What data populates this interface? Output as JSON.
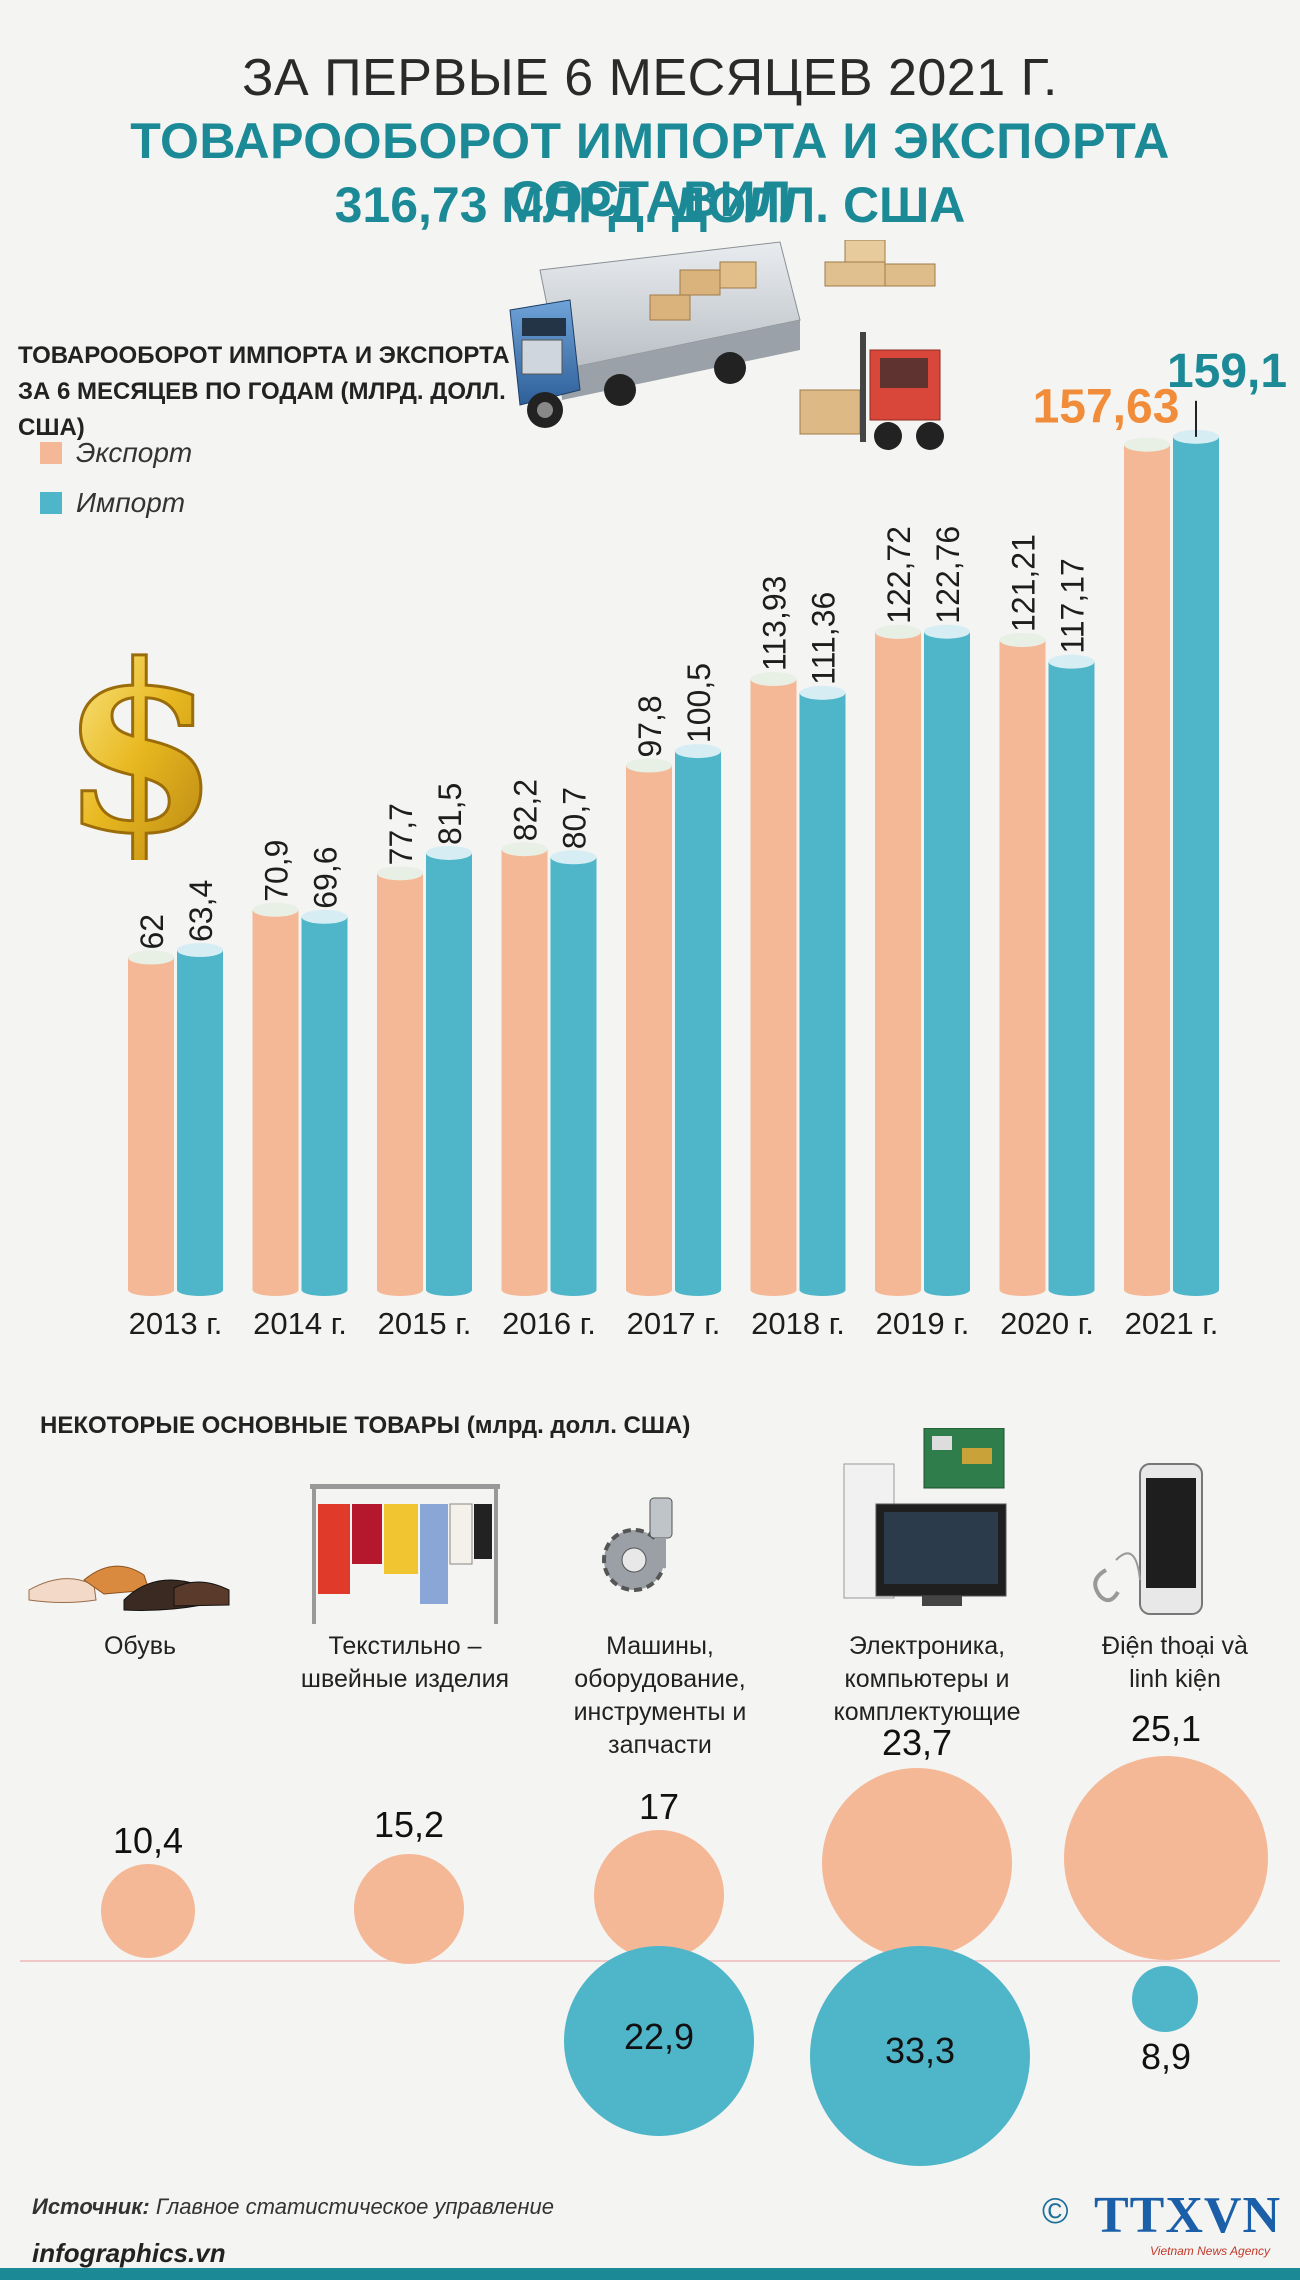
{
  "header": {
    "line1": "ЗА ПЕРВЫЕ 6 МЕСЯЦЕВ 2021 Г.",
    "line2": "ТОВАРООБОРОТ  ИМПОРТА И ЭКСПОРТА СОСТАВИЛ",
    "line3": "316,73 МЛРД. ДОЛЛ. США"
  },
  "colors": {
    "export": "#f4b896",
    "import": "#4fb6c9",
    "accent_teal": "#1b8a96",
    "highlight_orange": "#f08c3a"
  },
  "chart_data": {
    "type": "bar",
    "title": "ТОВАРООБОРОТ  ИМПОРТА И ЭКСПОРТА ЗА 6 МЕСЯЦЕВ ПО ГОДАМ (МЛРД. ДОЛЛ. США)",
    "categories": [
      "2013 г.",
      "2014 г.",
      "2015 г.",
      "2016 г.",
      "2017 г.",
      "2018 г.",
      "2019 г.",
      "2020 г.",
      "2021 г."
    ],
    "series": [
      {
        "name": "Экспорт",
        "values": [
          62,
          70.9,
          77.7,
          82.2,
          97.8,
          113.93,
          122.72,
          121.21,
          157.63
        ],
        "labels": [
          "62",
          "70,9",
          "77,7",
          "82,2",
          "97,8",
          "113,93",
          "122,72",
          "121,21",
          "157,63"
        ]
      },
      {
        "name": "Импорт",
        "values": [
          63.4,
          69.6,
          81.5,
          80.7,
          100.5,
          111.36,
          122.76,
          117.17,
          159.1
        ],
        "labels": [
          "63,4",
          "69,6",
          "81,5",
          "80,7",
          "100,5",
          "111,36",
          "122,76",
          "117,17",
          "159,1"
        ]
      }
    ],
    "ylim": [
      0,
      160
    ],
    "legend": "top-left",
    "grid": false
  },
  "goods": {
    "title": "НЕКОТОРЫЕ ОСНОВНЫЕ ТОВАРЫ",
    "unit": "(млрд. долл. США)",
    "items": [
      {
        "name": "Обувь",
        "export": "10,4",
        "import": "",
        "icon": "shoes-icon"
      },
      {
        "name": "Текстильно – швейные изделия",
        "export": "15,2",
        "import": "",
        "icon": "clothes-rack-icon"
      },
      {
        "name": "Машины, оборудование, инструменты и запчасти",
        "export": "17",
        "import": "22,9",
        "icon": "gears-icon"
      },
      {
        "name": "Электроника, компьютеры и комплектующие",
        "export": "23,7",
        "import": "33,3",
        "icon": "computer-icon"
      },
      {
        "name": "Điện thoại và linh kiện",
        "export": "25,1",
        "import": "8,9",
        "icon": "smartphone-icon"
      }
    ],
    "chart_data": {
      "type": "bubble",
      "categories": [
        "Обувь",
        "Текстильно – швейные изделия",
        "Машины, оборудование, инструменты и запчасти",
        "Электроника, компьютеры и комплектующие",
        "Điện thoại và linh kiện"
      ],
      "series": [
        {
          "name": "Экспорт",
          "values": [
            10.4,
            15.2,
            17,
            23.7,
            25.1
          ]
        },
        {
          "name": "Импорт",
          "values": [
            null,
            null,
            22.9,
            33.3,
            8.9
          ]
        }
      ]
    }
  },
  "footer": {
    "source_label": "Источник:",
    "source_text": " Главное статистическое управление",
    "site": "infographics.vn",
    "copyright": "©",
    "logo": "TTXVN",
    "logo_sub": "Vietnam News Agency"
  }
}
